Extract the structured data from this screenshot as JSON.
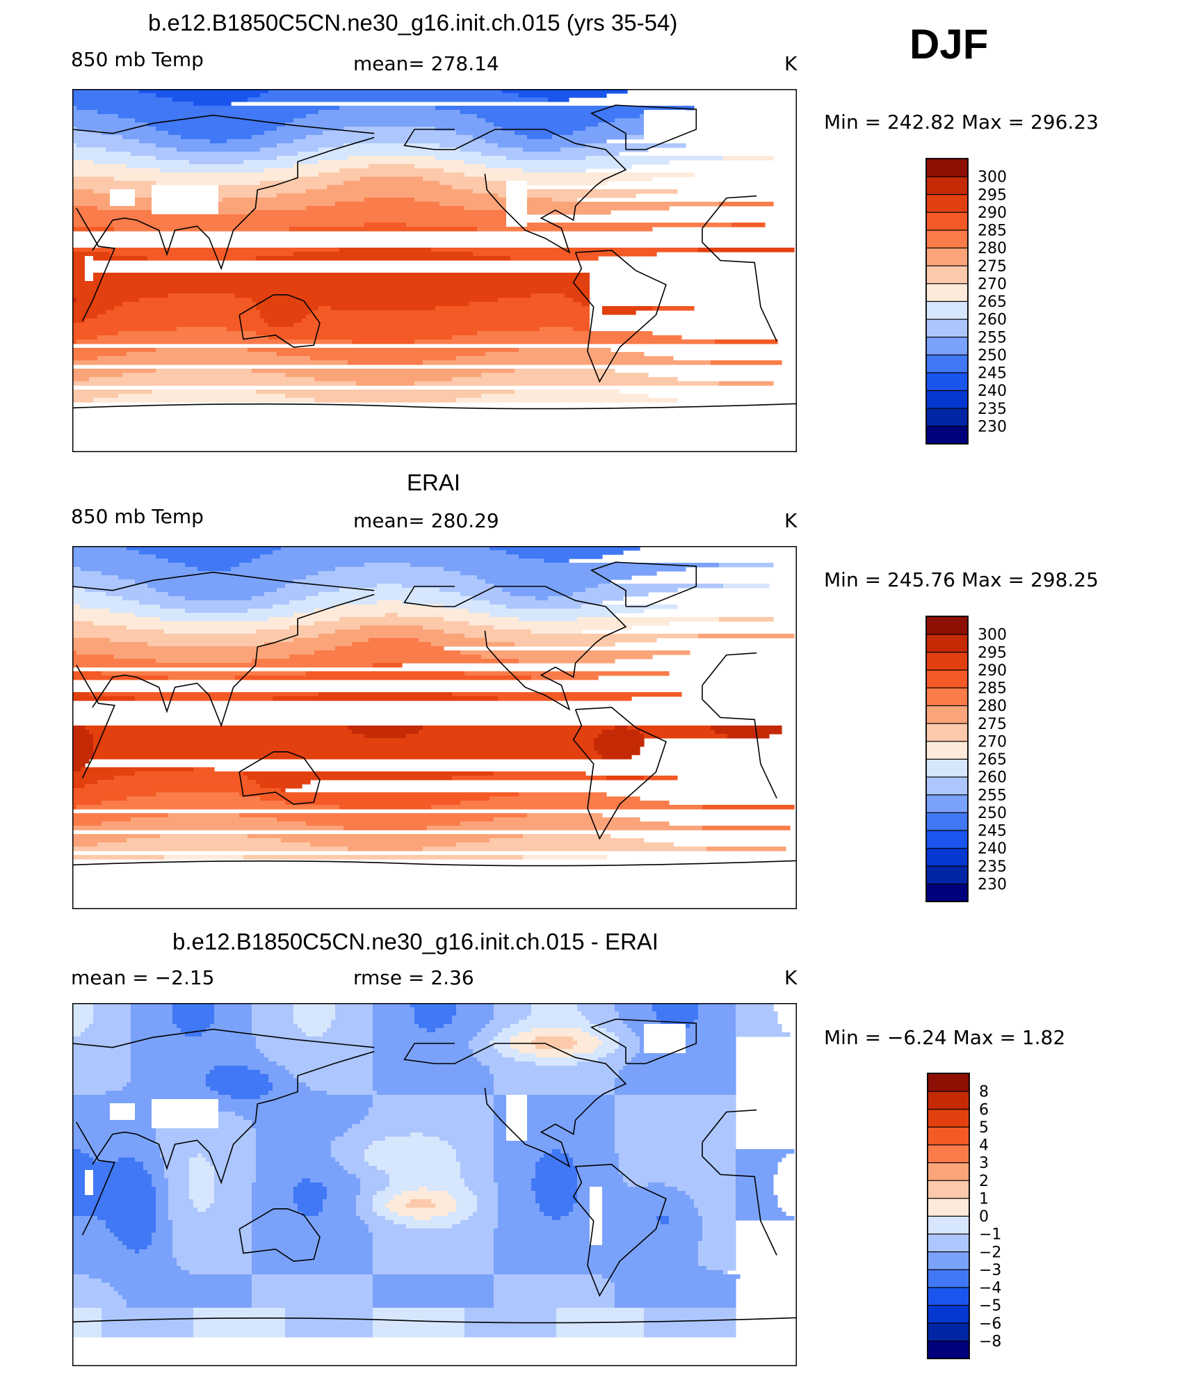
{
  "season": "DJF",
  "colors": {
    "abs": [
      "#00007d",
      "#0026a6",
      "#0538d1",
      "#1a55ee",
      "#4078f5",
      "#7aa2fa",
      "#adc6fd",
      "#d6e6fd",
      "#fdeada",
      "#fcc9aa",
      "#fba47a",
      "#fa7c4a",
      "#f45a25",
      "#e3400f",
      "#c42a06",
      "#8e0f03"
    ],
    "diff": [
      "#00007d",
      "#0026a6",
      "#0538d1",
      "#1a55ee",
      "#4078f5",
      "#7aa2fa",
      "#adc6fd",
      "#d6e6fd",
      "#fdeada",
      "#fcc9aa",
      "#fba47a",
      "#fa7c4a",
      "#f45a25",
      "#e3400f",
      "#c42a06",
      "#8e0f03"
    ],
    "land": "#000000",
    "missing": "#ffffff"
  },
  "chart_data": [
    {
      "type": "heatmap",
      "title": "b.e12.B1850C5CN.ne30_g16.init.ch.015 (yrs 35-54)",
      "left_label": "850 mb Temp",
      "center_label": "mean=  278.14",
      "units": "K",
      "mean": 278.14,
      "min_max": "Min  =  242.82  Max  =  296.23",
      "min": 242.82,
      "max": 296.23,
      "levels": [
        "230",
        "235",
        "240",
        "245",
        "250",
        "255",
        "260",
        "265",
        "270",
        "275",
        "280",
        "285",
        "290",
        "295",
        "300"
      ],
      "field": "model"
    },
    {
      "type": "heatmap",
      "title": "ERAI",
      "left_label": "850 mb Temp",
      "center_label": "mean=  280.29",
      "units": "K",
      "mean": 280.29,
      "min_max": "Min  =  245.76  Max  =  298.25",
      "min": 245.76,
      "max": 298.25,
      "levels": [
        "230",
        "235",
        "240",
        "245",
        "250",
        "255",
        "260",
        "265",
        "270",
        "275",
        "280",
        "285",
        "290",
        "295",
        "300"
      ],
      "field": "obs"
    },
    {
      "type": "heatmap",
      "title": "b.e12.B1850C5CN.ne30_g16.init.ch.015 - ERAI",
      "left_label": "mean =    −2.15",
      "center_label": "rmse =     2.36",
      "units": "K",
      "mean": -2.15,
      "rmse": 2.36,
      "min_max": "Min  =    −6.24  Max  =     1.82",
      "min": -6.24,
      "max": 1.82,
      "levels": [
        "−8",
        "−6",
        "−5",
        "−4",
        "−3",
        "−2",
        "−1",
        "0",
        "1",
        "2",
        "3",
        "4",
        "5",
        "6",
        "8"
      ],
      "field": "diff"
    }
  ]
}
